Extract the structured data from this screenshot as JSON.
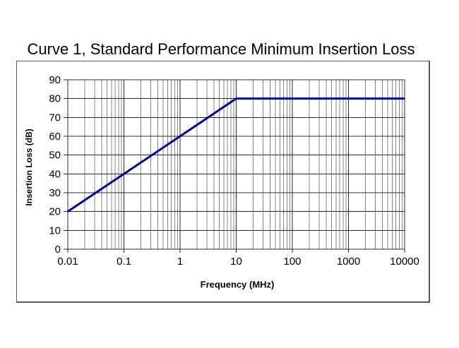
{
  "chart_data": {
    "type": "line",
    "title": "Curve 1, Standard Performance Minimum Insertion Loss",
    "xlabel": "Frequency (MHz)",
    "ylabel": "Insertion Loss (dB)",
    "x_scale": "log",
    "x_range": [
      0.01,
      10000
    ],
    "y_range": [
      0,
      90
    ],
    "x_ticks": [
      "0.01",
      "0.1",
      "1",
      "10",
      "100",
      "1000",
      "10000"
    ],
    "y_ticks": [
      "0",
      "10",
      "20",
      "30",
      "40",
      "50",
      "60",
      "70",
      "80",
      "90"
    ],
    "grid": {
      "horizontal_major": true,
      "vertical_major_decades": true,
      "vertical_log_minor": true,
      "legend": "none"
    },
    "series": [
      {
        "name": "Curve 1",
        "color": "#00008B",
        "points": [
          [
            0.01,
            20
          ],
          [
            10,
            80
          ],
          [
            10000,
            80
          ]
        ]
      }
    ],
    "colors": {
      "line": "#00008B",
      "grid_major": "#2b2b2b",
      "grid_minor": "#878787",
      "border": "#5a5a5a",
      "text": "#000000"
    }
  }
}
